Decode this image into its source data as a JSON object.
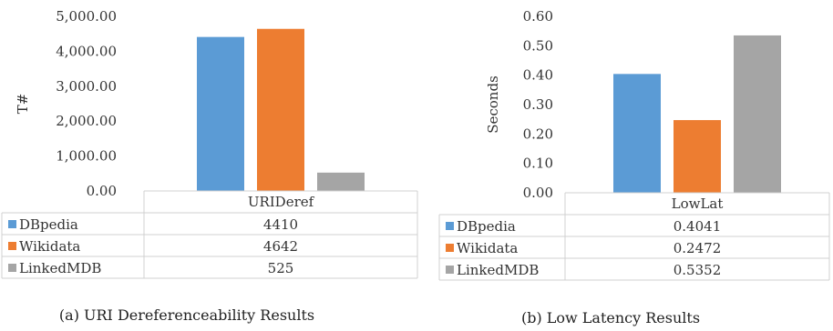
{
  "figure": {
    "captions": [
      "(a) URI Dereferenceability Results",
      "(b) Low Latency Results"
    ]
  },
  "chart_data": [
    {
      "type": "bar",
      "title": "",
      "categories": [
        "URIDeref"
      ],
      "ylabel": "T#",
      "xlabel": "",
      "ylim": [
        0,
        5000
      ],
      "yticks": [
        "0.00",
        "1,000.00",
        "2,000.00",
        "3,000.00",
        "4,000.00",
        "5,000.00"
      ],
      "ytick_values": [
        0,
        1000,
        2000,
        3000,
        4000,
        5000
      ],
      "grid": false,
      "legend": "data-table-below",
      "series": [
        {
          "name": "DBpedia",
          "values": [
            4410
          ],
          "color": "#5b9bd5",
          "label": "4410"
        },
        {
          "name": "Wikidata",
          "values": [
            4642
          ],
          "color": "#ed7d31",
          "label": "4642"
        },
        {
          "name": "LinkedMDB",
          "values": [
            525
          ],
          "color": "#a5a5a5",
          "label": "525"
        }
      ]
    },
    {
      "type": "bar",
      "title": "",
      "categories": [
        "LowLat"
      ],
      "ylabel": "Seconds",
      "xlabel": "",
      "ylim": [
        0,
        0.6
      ],
      "yticks": [
        "0.00",
        "0.10",
        "0.20",
        "0.30",
        "0.40",
        "0.50",
        "0.60"
      ],
      "ytick_values": [
        0,
        0.1,
        0.2,
        0.3,
        0.4,
        0.5,
        0.6
      ],
      "grid": false,
      "legend": "data-table-below",
      "series": [
        {
          "name": "DBpedia",
          "values": [
            0.4041
          ],
          "color": "#5b9bd5",
          "label": "0.4041"
        },
        {
          "name": "Wikidata",
          "values": [
            0.2472
          ],
          "color": "#ed7d31",
          "label": "0.2472"
        },
        {
          "name": "LinkedMDB",
          "values": [
            0.5352
          ],
          "color": "#a5a5a5",
          "label": "0.5352"
        }
      ]
    }
  ]
}
